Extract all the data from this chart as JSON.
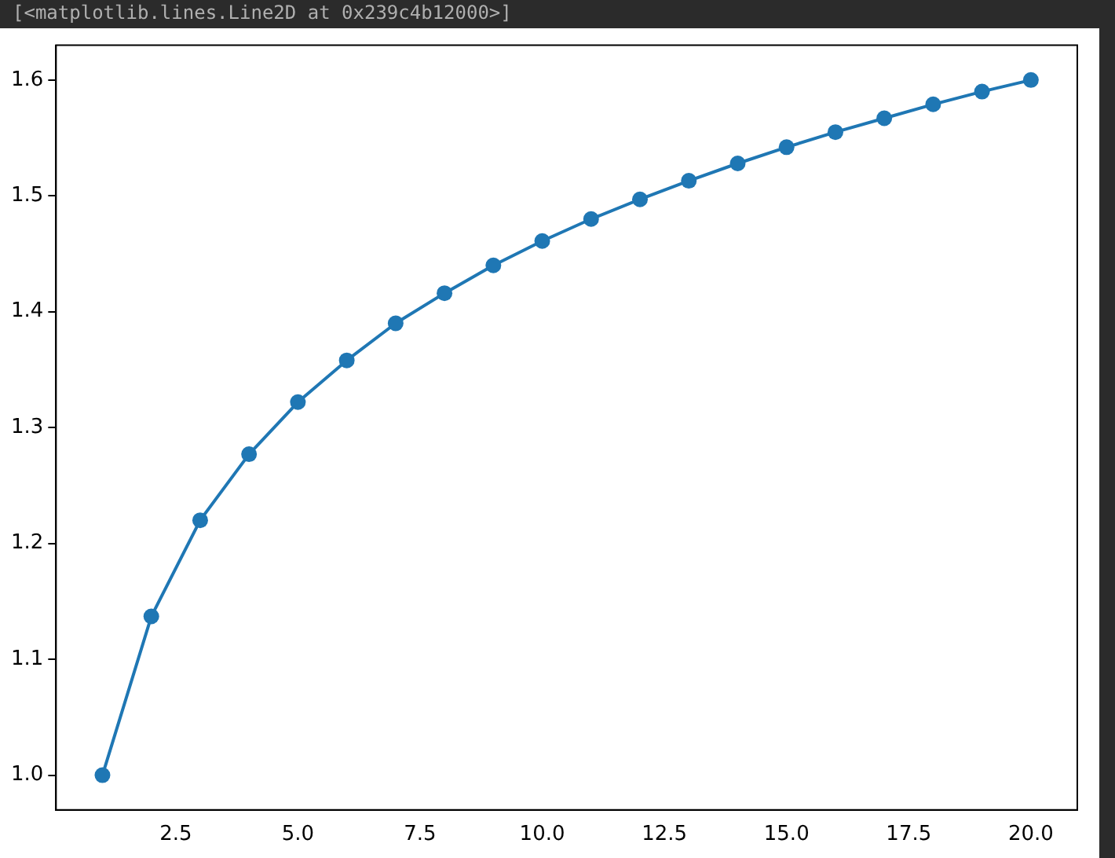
{
  "chart_data": {
    "type": "line",
    "annotations": [
      "[<matplotlib.lines.Line2D at 0x239c4b12000>]"
    ],
    "x": [
      1,
      2,
      3,
      4,
      5,
      6,
      7,
      8,
      9,
      10,
      11,
      12,
      13,
      14,
      15,
      16,
      17,
      18,
      19,
      20
    ],
    "series": [
      {
        "color": "#1f77b4",
        "values": [
          1.0,
          1.137,
          1.22,
          1.277,
          1.322,
          1.358,
          1.39,
          1.416,
          1.44,
          1.461,
          1.48,
          1.497,
          1.513,
          1.528,
          1.542,
          1.555,
          1.567,
          1.579,
          1.59,
          1.6
        ]
      }
    ],
    "xlim": [
      0.05,
      20.95
    ],
    "xticks": [
      {
        "value": 2.5,
        "label": "2.5"
      },
      {
        "value": 5,
        "label": "5.0"
      },
      {
        "value": 7.5,
        "label": "7.5"
      },
      {
        "value": 10,
        "label": "10.0"
      },
      {
        "value": 12.5,
        "label": "12.5"
      },
      {
        "value": 15,
        "label": "15.0"
      },
      {
        "value": 17.5,
        "label": "17.5"
      },
      {
        "value": 20,
        "label": "20.0"
      }
    ],
    "ylim": [
      0.97,
      1.63
    ],
    "yticks": [
      {
        "value": 1.0,
        "label": "1.0"
      },
      {
        "value": 1.1,
        "label": "1.1"
      },
      {
        "value": 1.2,
        "label": "1.2"
      },
      {
        "value": 1.3,
        "label": "1.3"
      },
      {
        "value": 1.4,
        "label": "1.4"
      },
      {
        "value": 1.5,
        "label": "1.5"
      },
      {
        "value": 1.6,
        "label": "1.6"
      }
    ],
    "grid": false,
    "legend": false,
    "marker": "circle",
    "line_style": "solid"
  }
}
